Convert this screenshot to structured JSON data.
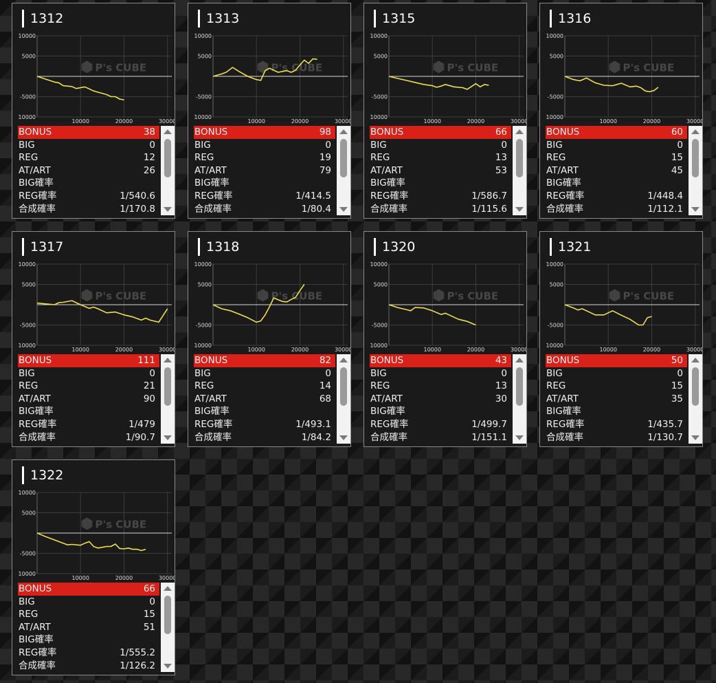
{
  "colors": {
    "bonus_bg": "#d9211a",
    "line": "#f0e04a",
    "card_bg": "#1a1a1a",
    "card_border": "#8a8a8a"
  },
  "watermark": {
    "brand": "P's CUBE"
  },
  "machines": [
    {
      "title": "1312",
      "stats": [
        {
          "label": "BONUS",
          "value": "38"
        },
        {
          "label": "BIG",
          "value": "0"
        },
        {
          "label": "REG",
          "value": "12"
        },
        {
          "label": "AT/ART",
          "value": "26"
        },
        {
          "label": "BIG確率",
          "value": ""
        },
        {
          "label": "REG確率",
          "value": "1/540.6"
        },
        {
          "label": "合成確率",
          "value": "1/170.8"
        }
      ],
      "chart_data": {
        "type": "line",
        "ylim": [
          -10000,
          10000
        ],
        "xlim": [
          0,
          31000
        ],
        "yticks": [
          "10000",
          "5000",
          "-5000",
          "-10000"
        ],
        "xticks": [
          "10000",
          "20000",
          "30000"
        ],
        "x": [
          0,
          2000,
          4000,
          5000,
          6000,
          8000,
          9000,
          11000,
          13000,
          14000,
          16000,
          17000,
          18000,
          19000,
          20000
        ],
        "y": [
          0,
          -700,
          -1400,
          -1600,
          -2300,
          -2500,
          -3000,
          -2600,
          -3600,
          -3900,
          -4500,
          -5000,
          -5000,
          -5600,
          -5800
        ]
      }
    },
    {
      "title": "1313",
      "stats": [
        {
          "label": "BONUS",
          "value": "98"
        },
        {
          "label": "BIG",
          "value": "0"
        },
        {
          "label": "REG",
          "value": "19"
        },
        {
          "label": "AT/ART",
          "value": "79"
        },
        {
          "label": "BIG確率",
          "value": ""
        },
        {
          "label": "REG確率",
          "value": "1/414.5"
        },
        {
          "label": "合成確率",
          "value": "1/80.4"
        }
      ],
      "chart_data": {
        "type": "line",
        "ylim": [
          -10000,
          10000
        ],
        "xlim": [
          0,
          31000
        ],
        "yticks": [
          "10000",
          "5000",
          "-5000",
          "-10000"
        ],
        "xticks": [
          "10000",
          "20000",
          "30000"
        ],
        "x": [
          0,
          2000,
          3000,
          4500,
          6000,
          8000,
          10000,
          11000,
          12000,
          13000,
          14000,
          15000,
          16000,
          17000,
          18000,
          19000,
          20000,
          21000,
          22000,
          23000,
          24000
        ],
        "y": [
          0,
          600,
          1000,
          2200,
          1200,
          0,
          -800,
          -1000,
          1400,
          2000,
          1500,
          1000,
          1200,
          1400,
          1000,
          1500,
          2800,
          4000,
          3200,
          4300,
          4200
        ]
      }
    },
    {
      "title": "1315",
      "stats": [
        {
          "label": "BONUS",
          "value": "66"
        },
        {
          "label": "BIG",
          "value": "0"
        },
        {
          "label": "REG",
          "value": "13"
        },
        {
          "label": "AT/ART",
          "value": "53"
        },
        {
          "label": "BIG確率",
          "value": ""
        },
        {
          "label": "REG確率",
          "value": "1/586.7"
        },
        {
          "label": "合成確率",
          "value": "1/115.6"
        }
      ],
      "chart_data": {
        "type": "line",
        "ylim": [
          -10000,
          10000
        ],
        "xlim": [
          0,
          31000
        ],
        "yticks": [
          "10000",
          "5000",
          "-5000",
          "-10000"
        ],
        "xticks": [
          "10000",
          "20000",
          "30000"
        ],
        "x": [
          0,
          2000,
          4000,
          6000,
          8000,
          10000,
          11000,
          12000,
          13000,
          15000,
          17000,
          18000,
          19000,
          20000,
          21000,
          22000,
          23000
        ],
        "y": [
          0,
          -500,
          -1000,
          -1500,
          -2000,
          -2300,
          -2700,
          -2400,
          -2000,
          -2600,
          -2800,
          -3200,
          -2500,
          -1800,
          -2600,
          -2000,
          -2200
        ]
      }
    },
    {
      "title": "1316",
      "stats": [
        {
          "label": "BONUS",
          "value": "60"
        },
        {
          "label": "BIG",
          "value": "0"
        },
        {
          "label": "REG",
          "value": "15"
        },
        {
          "label": "AT/ART",
          "value": "45"
        },
        {
          "label": "BIG確率",
          "value": ""
        },
        {
          "label": "REG確率",
          "value": "1/448.4"
        },
        {
          "label": "合成確率",
          "value": "1/112.1"
        }
      ],
      "chart_data": {
        "type": "line",
        "ylim": [
          -10000,
          10000
        ],
        "xlim": [
          0,
          31000
        ],
        "yticks": [
          "10000",
          "5000",
          "-5000",
          "-10000"
        ],
        "xticks": [
          "10000",
          "20000",
          "30000"
        ],
        "x": [
          0,
          2000,
          3500,
          5000,
          7000,
          9000,
          11000,
          12000,
          13000,
          15000,
          16500,
          17500,
          18500,
          19500,
          20500,
          21500
        ],
        "y": [
          0,
          -800,
          -1100,
          -400,
          -1600,
          -2200,
          -2300,
          -2000,
          -1700,
          -2600,
          -2400,
          -2800,
          -3600,
          -3800,
          -3500,
          -2700
        ]
      }
    },
    {
      "title": "1317",
      "stats": [
        {
          "label": "BONUS",
          "value": "111"
        },
        {
          "label": "BIG",
          "value": "0"
        },
        {
          "label": "REG",
          "value": "21"
        },
        {
          "label": "AT/ART",
          "value": "90"
        },
        {
          "label": "BIG確率",
          "value": ""
        },
        {
          "label": "REG確率",
          "value": "1/479"
        },
        {
          "label": "合成確率",
          "value": "1/90.7"
        }
      ],
      "chart_data": {
        "type": "line",
        "ylim": [
          -10000,
          10000
        ],
        "xlim": [
          0,
          31000
        ],
        "yticks": [
          "10000",
          "5000",
          "-5000",
          "-10000"
        ],
        "xticks": [
          "10000",
          "20000",
          "30000"
        ],
        "x": [
          0,
          2000,
          4000,
          5000,
          6000,
          8000,
          10000,
          12000,
          13000,
          14000,
          16000,
          18000,
          20000,
          22000,
          24000,
          25000,
          26000,
          28000,
          30000
        ],
        "y": [
          400,
          200,
          0,
          500,
          600,
          1000,
          0,
          -900,
          -600,
          -1000,
          -2000,
          -1800,
          -2500,
          -3000,
          -3800,
          -3300,
          -3800,
          -4300,
          -1000
        ]
      }
    },
    {
      "title": "1318",
      "stats": [
        {
          "label": "BONUS",
          "value": "82"
        },
        {
          "label": "BIG",
          "value": "0"
        },
        {
          "label": "REG",
          "value": "14"
        },
        {
          "label": "AT/ART",
          "value": "68"
        },
        {
          "label": "BIG確率",
          "value": ""
        },
        {
          "label": "REG確率",
          "value": "1/493.1"
        },
        {
          "label": "合成確率",
          "value": "1/84.2"
        }
      ],
      "chart_data": {
        "type": "line",
        "ylim": [
          -10000,
          10000
        ],
        "xlim": [
          0,
          31000
        ],
        "yticks": [
          "10000",
          "5000",
          "-5000",
          "-10000"
        ],
        "xticks": [
          "10000",
          "20000",
          "30000"
        ],
        "x": [
          0,
          2000,
          4000,
          6000,
          8000,
          10000,
          11000,
          12000,
          13000,
          14000,
          15000,
          16000,
          17000,
          18000,
          19000,
          20000,
          21000
        ],
        "y": [
          0,
          -1000,
          -1500,
          -2300,
          -3200,
          -4300,
          -4000,
          -2500,
          -500,
          1700,
          1200,
          800,
          700,
          1300,
          1800,
          3500,
          5000
        ]
      }
    },
    {
      "title": "1320",
      "stats": [
        {
          "label": "BONUS",
          "value": "43"
        },
        {
          "label": "BIG",
          "value": "0"
        },
        {
          "label": "REG",
          "value": "13"
        },
        {
          "label": "AT/ART",
          "value": "30"
        },
        {
          "label": "BIG確率",
          "value": ""
        },
        {
          "label": "REG確率",
          "value": "1/499.7"
        },
        {
          "label": "合成確率",
          "value": "1/151.1"
        }
      ],
      "chart_data": {
        "type": "line",
        "ylim": [
          -10000,
          10000
        ],
        "xlim": [
          0,
          31000
        ],
        "yticks": [
          "10000",
          "5000",
          "-5000",
          "-10000"
        ],
        "xticks": [
          "10000",
          "20000",
          "30000"
        ],
        "x": [
          0,
          2000,
          4000,
          5000,
          6000,
          8000,
          10000,
          12000,
          13000,
          14000,
          16000,
          18000,
          20000
        ],
        "y": [
          0,
          -700,
          -1200,
          -1500,
          -700,
          -800,
          -1500,
          -2400,
          -2100,
          -2600,
          -3600,
          -4100,
          -5000
        ]
      }
    },
    {
      "title": "1321",
      "stats": [
        {
          "label": "BONUS",
          "value": "50"
        },
        {
          "label": "BIG",
          "value": "0"
        },
        {
          "label": "REG",
          "value": "15"
        },
        {
          "label": "AT/ART",
          "value": "35"
        },
        {
          "label": "BIG確率",
          "value": ""
        },
        {
          "label": "REG確率",
          "value": "1/435.7"
        },
        {
          "label": "合成確率",
          "value": "1/130.7"
        }
      ],
      "chart_data": {
        "type": "line",
        "ylim": [
          -10000,
          10000
        ],
        "xlim": [
          0,
          31000
        ],
        "yticks": [
          "10000",
          "5000",
          "-5000",
          "-10000"
        ],
        "xticks": [
          "10000",
          "20000",
          "30000"
        ],
        "x": [
          0,
          2000,
          3000,
          4000,
          6000,
          7000,
          9000,
          11000,
          13000,
          15000,
          17000,
          18000,
          19000,
          20000
        ],
        "y": [
          0,
          -800,
          -1300,
          -1000,
          -2000,
          -2500,
          -2500,
          -1500,
          -2600,
          -3600,
          -5000,
          -5000,
          -3200,
          -2900
        ]
      }
    },
    {
      "title": "1322",
      "stats": [
        {
          "label": "BONUS",
          "value": "66"
        },
        {
          "label": "BIG",
          "value": "0"
        },
        {
          "label": "REG",
          "value": "15"
        },
        {
          "label": "AT/ART",
          "value": "51"
        },
        {
          "label": "BIG確率",
          "value": ""
        },
        {
          "label": "REG確率",
          "value": "1/555.2"
        },
        {
          "label": "合成確率",
          "value": "1/126.2"
        }
      ],
      "chart_data": {
        "type": "line",
        "ylim": [
          -10000,
          10000
        ],
        "xlim": [
          0,
          31000
        ],
        "yticks": [
          "10000",
          "5000",
          "-5000",
          "-10000"
        ],
        "xticks": [
          "10000",
          "20000",
          "30000"
        ],
        "x": [
          0,
          2000,
          4000,
          6000,
          7000,
          8000,
          10000,
          11000,
          12000,
          13000,
          14000,
          16000,
          17000,
          18000,
          19000,
          20000,
          21000,
          22000,
          23000,
          24000,
          25000
        ],
        "y": [
          0,
          -900,
          -1700,
          -2500,
          -2900,
          -2800,
          -3000,
          -2500,
          -2100,
          -3300,
          -3700,
          -3300,
          -3300,
          -2700,
          -3800,
          -3900,
          -3700,
          -4000,
          -4000,
          -4300,
          -4000
        ]
      }
    }
  ]
}
